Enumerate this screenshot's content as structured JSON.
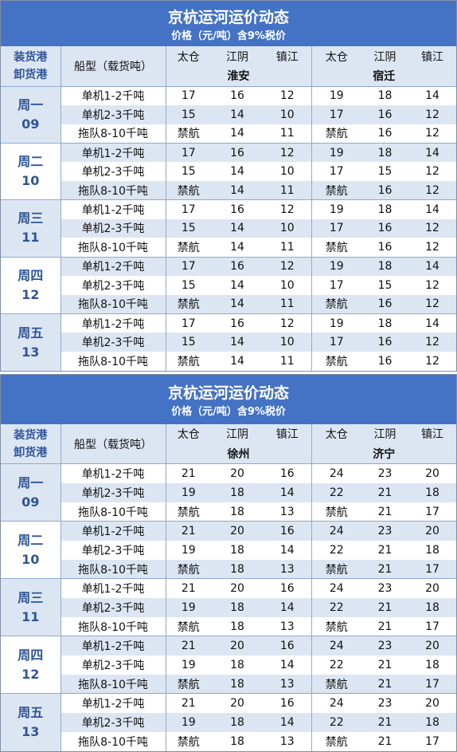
{
  "tables": [
    {
      "title": "京杭运河运价动态",
      "subtitle": "价格（元/吨）含9%税价",
      "header": {
        "load": "装货港",
        "unload": "卸货港",
        "ship_type": "船型（载货吨）",
        "origins": [
          "太仓",
          "江阴",
          "镇江",
          "太仓",
          "江阴",
          "镇江"
        ],
        "destinations": [
          "淮安",
          "宿迁"
        ]
      },
      "days": [
        {
          "day": "周一",
          "date": "09",
          "rows": [
            {
              "type": "单机1-2千吨",
              "values": [
                17,
                16,
                12,
                19,
                18,
                14
              ]
            },
            {
              "type": "单机2-3千吨",
              "values": [
                15,
                14,
                10,
                17,
                16,
                12
              ]
            },
            {
              "type": "拖队8-10千吨",
              "values": [
                "禁航",
                14,
                11,
                "禁航",
                16,
                12
              ]
            }
          ]
        },
        {
          "day": "周二",
          "date": "10",
          "rows": [
            {
              "type": "单机1-2千吨",
              "values": [
                17,
                16,
                12,
                19,
                18,
                14
              ]
            },
            {
              "type": "单机2-3千吨",
              "values": [
                15,
                14,
                10,
                17,
                15,
                12
              ]
            },
            {
              "type": "拖队8-10千吨",
              "values": [
                "禁航",
                14,
                11,
                "禁航",
                16,
                12
              ]
            }
          ]
        },
        {
          "day": "周三",
          "date": "11",
          "rows": [
            {
              "type": "单机1-2千吨",
              "values": [
                17,
                16,
                12,
                19,
                18,
                14
              ]
            },
            {
              "type": "单机2-3千吨",
              "values": [
                15,
                14,
                10,
                17,
                16,
                12
              ]
            },
            {
              "type": "拖队8-10千吨",
              "values": [
                "禁航",
                14,
                11,
                "禁航",
                16,
                12
              ]
            }
          ]
        },
        {
          "day": "周四",
          "date": "12",
          "rows": [
            {
              "type": "单机1-2千吨",
              "values": [
                17,
                16,
                12,
                19,
                18,
                14
              ]
            },
            {
              "type": "单机2-3千吨",
              "values": [
                15,
                14,
                10,
                17,
                15,
                12
              ]
            },
            {
              "type": "拖队8-10千吨",
              "values": [
                "禁航",
                14,
                11,
                "禁航",
                16,
                12
              ]
            }
          ]
        },
        {
          "day": "周五",
          "date": "13",
          "rows": [
            {
              "type": "单机1-2千吨",
              "values": [
                17,
                16,
                12,
                19,
                18,
                14
              ]
            },
            {
              "type": "单机2-3千吨",
              "values": [
                15,
                14,
                10,
                17,
                16,
                12
              ]
            },
            {
              "type": "拖队8-10千吨",
              "values": [
                "禁航",
                14,
                11,
                "禁航",
                16,
                12
              ]
            }
          ]
        }
      ]
    },
    {
      "title": "京杭运河运价动态",
      "subtitle": "价格（元/吨）含9%税价",
      "header": {
        "load": "装货港",
        "unload": "卸货港",
        "ship_type": "船型（载货吨）",
        "origins": [
          "太仓",
          "江阴",
          "镇江",
          "太仓",
          "江阴",
          "镇江"
        ],
        "destinations": [
          "徐州",
          "济宁"
        ]
      },
      "days": [
        {
          "day": "周一",
          "date": "09",
          "rows": [
            {
              "type": "单机1-2千吨",
              "values": [
                21,
                20,
                16,
                24,
                23,
                20
              ]
            },
            {
              "type": "单机2-3千吨",
              "values": [
                19,
                18,
                14,
                22,
                21,
                18
              ]
            },
            {
              "type": "拖队8-10千吨",
              "values": [
                "禁航",
                18,
                13,
                "禁航",
                21,
                17
              ]
            }
          ]
        },
        {
          "day": "周二",
          "date": "10",
          "rows": [
            {
              "type": "单机1-2千吨",
              "values": [
                21,
                20,
                16,
                24,
                23,
                20
              ]
            },
            {
              "type": "单机2-3千吨",
              "values": [
                19,
                18,
                14,
                22,
                21,
                18
              ]
            },
            {
              "type": "拖队8-10千吨",
              "values": [
                "禁航",
                18,
                13,
                "禁航",
                21,
                17
              ]
            }
          ]
        },
        {
          "day": "周三",
          "date": "11",
          "rows": [
            {
              "type": "单机1-2千吨",
              "values": [
                21,
                20,
                16,
                24,
                23,
                20
              ]
            },
            {
              "type": "单机2-3千吨",
              "values": [
                19,
                18,
                14,
                22,
                21,
                18
              ]
            },
            {
              "type": "拖队8-10千吨",
              "values": [
                "禁航",
                18,
                13,
                "禁航",
                21,
                17
              ]
            }
          ]
        },
        {
          "day": "周四",
          "date": "12",
          "rows": [
            {
              "type": "单机1-2千吨",
              "values": [
                21,
                20,
                16,
                24,
                23,
                20
              ]
            },
            {
              "type": "单机2-3千吨",
              "values": [
                19,
                18,
                14,
                22,
                21,
                18
              ]
            },
            {
              "type": "拖队8-10千吨",
              "values": [
                "禁航",
                18,
                13,
                "禁航",
                21,
                17
              ]
            }
          ]
        },
        {
          "day": "周五",
          "date": "13",
          "rows": [
            {
              "type": "单机1-2千吨",
              "values": [
                21,
                20,
                16,
                24,
                23,
                20
              ]
            },
            {
              "type": "单机2-3千吨",
              "values": [
                19,
                18,
                14,
                22,
                21,
                18
              ]
            },
            {
              "type": "拖队8-10千吨",
              "values": [
                "禁航",
                18,
                13,
                "禁航",
                21,
                17
              ]
            }
          ]
        }
      ]
    }
  ]
}
